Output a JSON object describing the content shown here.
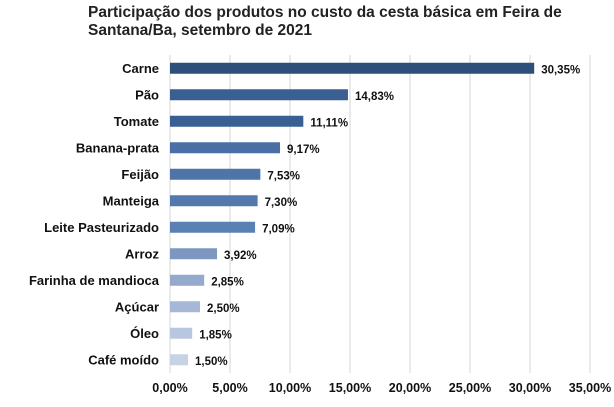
{
  "chart_data": {
    "type": "bar",
    "orientation": "horizontal",
    "title": "Participação dos produtos no custo da cesta básica em Feira de Santana/Ba, setembro  de 2021",
    "categories": [
      "Carne",
      "Pão",
      "Tomate",
      "Banana-prata",
      "Feijão",
      "Manteiga",
      "Leite Pasteurizado",
      "Arroz",
      "Farinha de mandioca",
      "Açúcar",
      "Óleo",
      "Café moído"
    ],
    "values": [
      30.35,
      14.83,
      11.11,
      9.17,
      7.53,
      7.3,
      7.09,
      3.92,
      2.85,
      2.5,
      1.85,
      1.5
    ],
    "value_labels": [
      "30,35%",
      "14,83%",
      "11,11%",
      "9,17%",
      "7,53%",
      "7,30%",
      "7,09%",
      "3,92%",
      "2,85%",
      "2,50%",
      "1,85%",
      "1,50%"
    ],
    "xlim": [
      0,
      35
    ],
    "xticks": [
      0,
      5,
      10,
      15,
      20,
      25,
      30,
      35
    ],
    "xtick_labels": [
      "0,00%",
      "5,00%",
      "10,00%",
      "15,00%",
      "20,00%",
      "25,00%",
      "30,00%",
      "35,00%"
    ],
    "grid": true,
    "legend": "none",
    "bar_colors": [
      "#2e4f7a",
      "#3a5f92",
      "#3a5f92",
      "#4a6fa5",
      "#4f74a8",
      "#5479ad",
      "#5b80b4",
      "#7d97c1",
      "#94aacd",
      "#a6b8d6",
      "#b8c7df",
      "#c6d2e6"
    ],
    "grid_color": "#d4d4d4"
  }
}
